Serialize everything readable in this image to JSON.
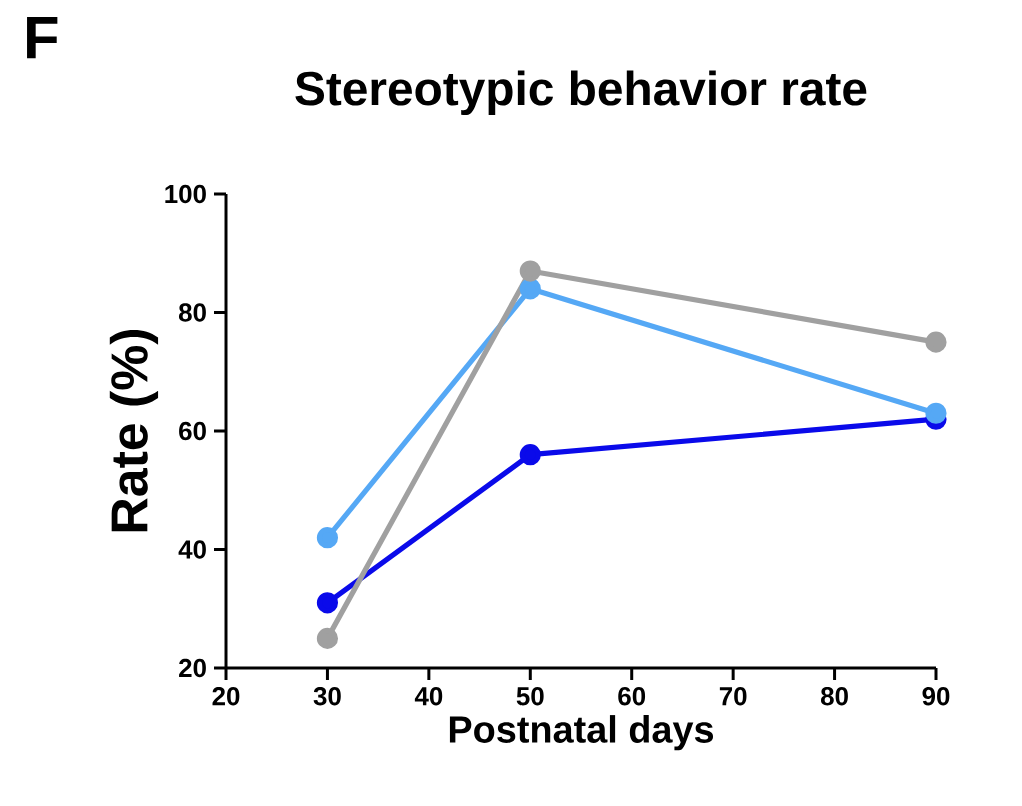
{
  "chart_data": {
    "type": "line",
    "title": "Stereotypic behavior rate",
    "xlabel": "Postnatal days",
    "ylabel": "Rate (%)",
    "annotations": [
      "F"
    ],
    "x": [
      30,
      50,
      90
    ],
    "series": [
      {
        "color": "#0a0aea",
        "values": [
          31,
          56,
          62
        ]
      },
      {
        "color": "#55a8f5",
        "values": [
          42,
          84,
          63
        ]
      },
      {
        "color": "#a0a0a0",
        "values": [
          25,
          87,
          75
        ]
      }
    ],
    "xlim": [
      20,
      90
    ],
    "xticks": [
      20,
      30,
      40,
      50,
      60,
      70,
      80,
      90
    ],
    "ylim": [
      20,
      100
    ],
    "yticks": [
      20,
      40,
      60,
      80,
      100
    ],
    "grid": false,
    "marker": "circle",
    "line_style": "solid"
  }
}
